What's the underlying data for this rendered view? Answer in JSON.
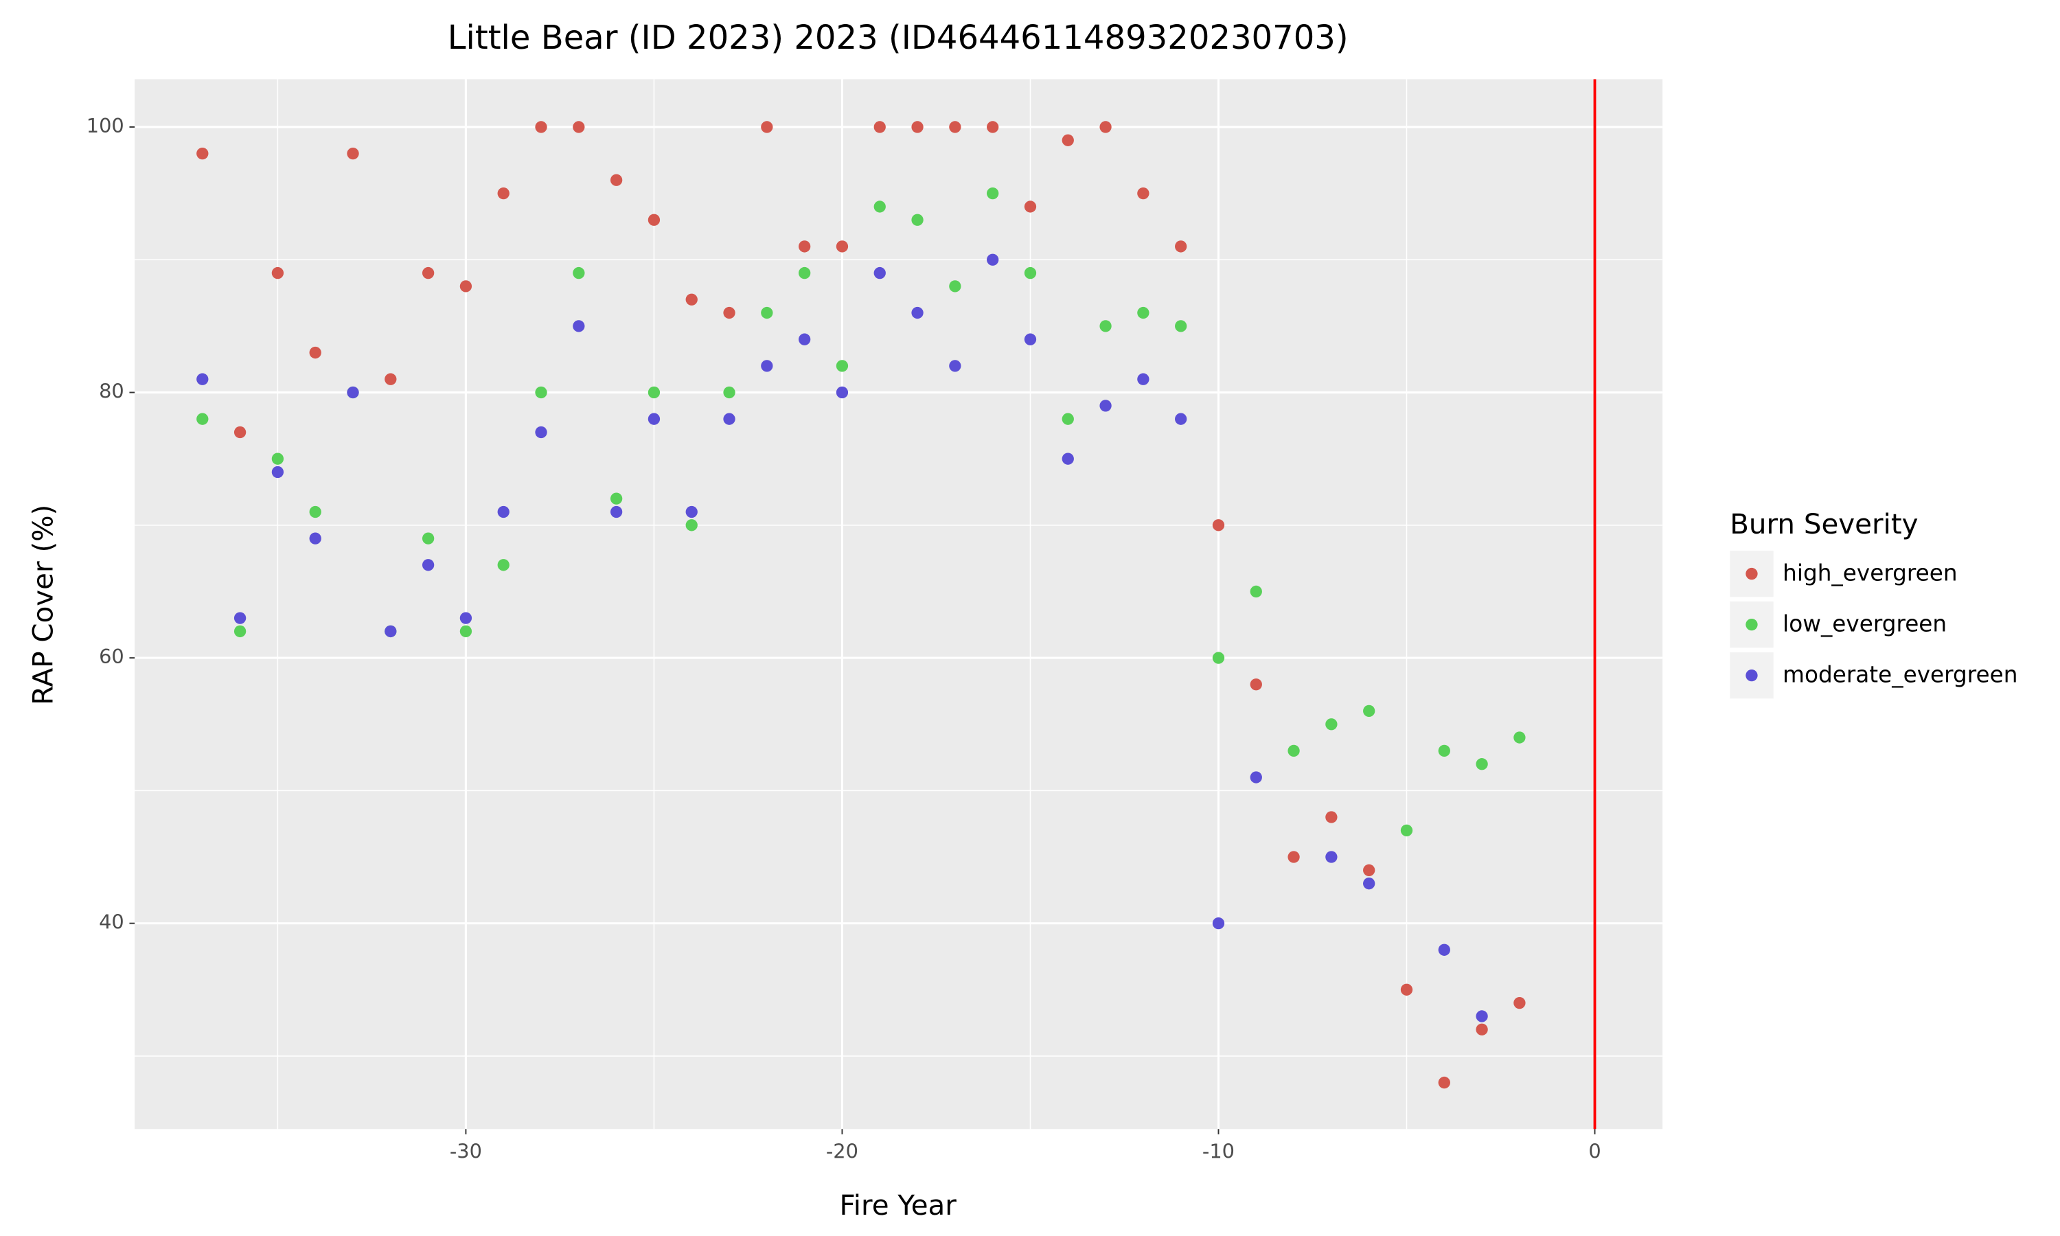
{
  "chart_data": {
    "type": "scatter",
    "title": "Little Bear (ID 2023) 2023 (ID46446114893202307​03)",
    "x_label": "Fire Year",
    "y_label": "RAP Cover (%)",
    "x": [
      -37,
      -36,
      -35,
      -34,
      -33,
      -32,
      -31,
      -30,
      -29,
      -28,
      -27,
      -26,
      -25,
      -24,
      -23,
      -22,
      -21,
      -20,
      -19,
      -18,
      -17,
      -16,
      -15,
      -14,
      -13,
      -12,
      -11,
      -10,
      -9,
      -8,
      -7,
      -6,
      -5,
      -4,
      -3,
      -2
    ],
    "series": [
      {
        "name": "high_evergreen",
        "color": "#d4574d",
        "values": [
          98,
          77,
          89,
          83,
          98,
          81,
          89,
          88,
          95,
          100,
          100,
          96,
          93,
          87,
          86,
          100,
          91,
          91,
          100,
          100,
          100,
          100,
          94,
          99,
          100,
          95,
          91,
          70,
          58,
          45,
          48,
          44,
          35,
          28,
          32,
          34
        ]
      },
      {
        "name": "low_evergreen",
        "color": "#58d058",
        "values": [
          78,
          62,
          75,
          71,
          80,
          62,
          69,
          62,
          67,
          80,
          89,
          72,
          80,
          70,
          80,
          86,
          89,
          82,
          94,
          93,
          88,
          95,
          89,
          78,
          85,
          86,
          85,
          60,
          65,
          53,
          55,
          56,
          47,
          53,
          52,
          54
        ]
      },
      {
        "name": "moderate_evergreen",
        "color": "#5b4fd6",
        "values": [
          81,
          63,
          74,
          69,
          80,
          62,
          67,
          63,
          71,
          77,
          85,
          71,
          78,
          71,
          78,
          82,
          84,
          80,
          89,
          86,
          82,
          90,
          84,
          75,
          79,
          81,
          78,
          40,
          51,
          null,
          45,
          43,
          null,
          38,
          33,
          null
        ]
      }
    ],
    "legend_title": "Burn Severity",
    "legend": "right",
    "xlim": [
      -38.8,
      1.8
    ],
    "xticks": [
      -30,
      -20,
      -10,
      0
    ],
    "xminorticks": [
      -35,
      -25,
      -15,
      -5
    ],
    "ylim": [
      24.5,
      103.6
    ],
    "yticks": [
      40,
      60,
      80,
      100
    ],
    "yminorticks": [
      30,
      50,
      70,
      90
    ],
    "grid": true,
    "vline": {
      "x": 0,
      "color": "#ff0000"
    }
  }
}
